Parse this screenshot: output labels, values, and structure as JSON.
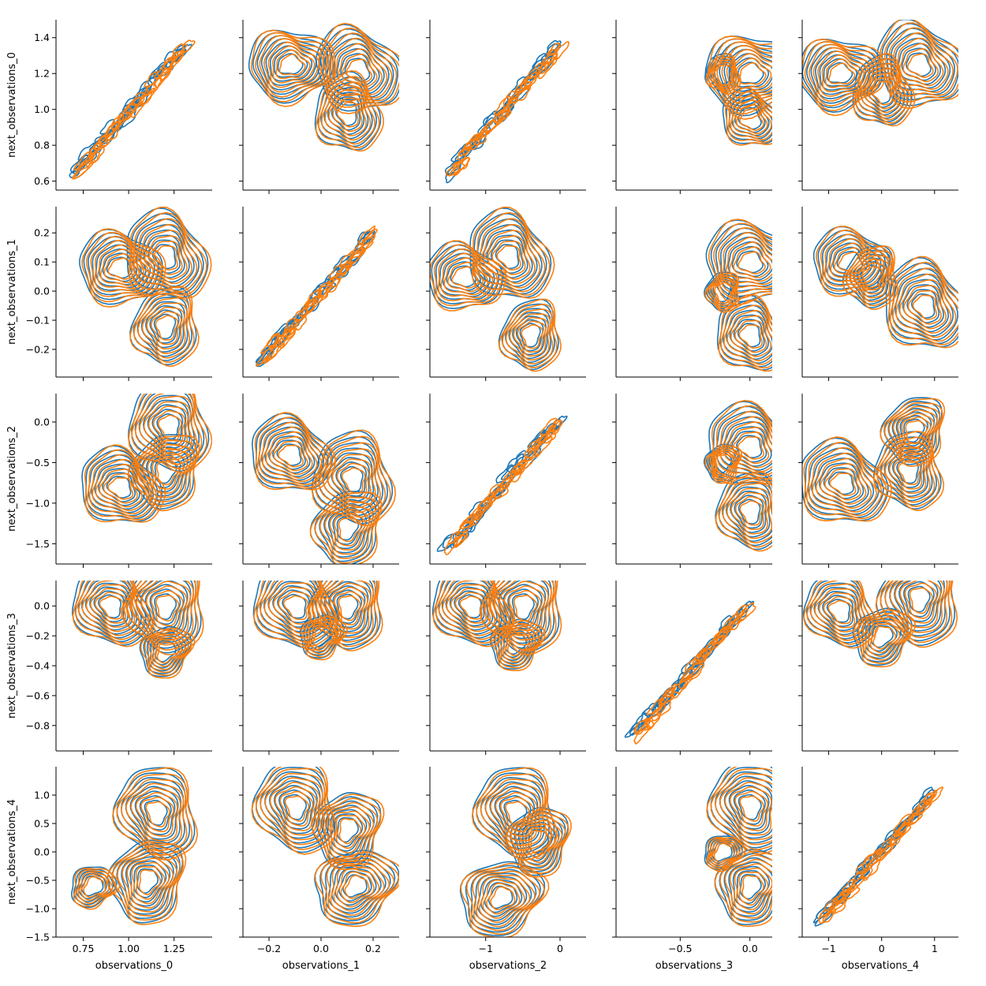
{
  "chart_data": {
    "type": "kde_pairgrid",
    "description_kind": "5x5 pair grid of bivariate KDE contour plots, two overlaid series (blue and orange)",
    "series_colors": [
      "#1f77b4",
      "#ff7f0e"
    ],
    "x_variables": [
      "observations_0",
      "observations_1",
      "observations_2",
      "observations_3",
      "observations_4"
    ],
    "y_variables": [
      "next_observations_0",
      "next_observations_1",
      "next_observations_2",
      "next_observations_3",
      "next_observations_4"
    ],
    "x_axes": [
      {
        "label": "observations_0",
        "range": [
          0.6,
          1.46
        ],
        "ticks": [
          0.75,
          1.0,
          1.25
        ],
        "tick_labels": [
          "0.75",
          "1.00",
          "1.25"
        ]
      },
      {
        "label": "observations_1",
        "range": [
          -0.3,
          0.3
        ],
        "ticks": [
          -0.2,
          0.0,
          0.2
        ],
        "tick_labels": [
          "−0.2",
          "0.0",
          "0.2"
        ]
      },
      {
        "label": "observations_2",
        "range": [
          -1.75,
          0.35
        ],
        "ticks": [
          -1,
          0
        ],
        "tick_labels": [
          "−1",
          "0"
        ]
      },
      {
        "label": "observations_3",
        "range": [
          -0.96,
          0.16
        ],
        "ticks": [
          -0.5,
          0.0
        ],
        "tick_labels": [
          "−0.5",
          "0.0"
        ]
      },
      {
        "label": "observations_4",
        "range": [
          -1.5,
          1.45
        ],
        "ticks": [
          -1,
          0,
          1
        ],
        "tick_labels": [
          "−1",
          "0",
          "1"
        ]
      }
    ],
    "y_axes": [
      {
        "label": "next_observations_0",
        "range": [
          0.55,
          1.5
        ],
        "ticks": [
          0.6,
          0.8,
          1.0,
          1.2,
          1.4
        ],
        "tick_labels": [
          "0.6",
          "0.8",
          "1.0",
          "1.2",
          "1.4"
        ]
      },
      {
        "label": "next_observations_1",
        "range": [
          -0.295,
          0.29
        ],
        "ticks": [
          -0.2,
          -0.1,
          0.0,
          0.1,
          0.2
        ],
        "tick_labels": [
          "−0.2",
          "−0.1",
          "0.0",
          "0.1",
          "0.2"
        ]
      },
      {
        "label": "next_observations_2",
        "range": [
          -1.75,
          0.35
        ],
        "ticks": [
          -1.5,
          -1.0,
          -0.5,
          0.0
        ],
        "tick_labels": [
          "−1.5",
          "−1.0",
          "−0.5",
          "0.0"
        ]
      },
      {
        "label": "next_observations_3",
        "range": [
          -0.97,
          0.17
        ],
        "ticks": [
          -0.8,
          -0.6,
          -0.4,
          -0.2,
          0.0
        ],
        "tick_labels": [
          "−0.8",
          "−0.6",
          "−0.4",
          "−0.2",
          "0.0"
        ]
      },
      {
        "label": "next_observations_4",
        "range": [
          -1.5,
          1.5
        ],
        "ticks": [
          -1.5,
          -1.0,
          -0.5,
          0.0,
          0.5,
          1.0
        ],
        "tick_labels": [
          "−1.5",
          "−1.0",
          "−0.5",
          "0.0",
          "0.5",
          "1.0"
        ]
      }
    ],
    "panels": [
      [
        {
          "kind": "diag",
          "modes": [
            [
              1.05,
              1.05,
              0.3
            ]
          ]
        },
        {
          "kind": "kde",
          "modes": [
            [
              -0.12,
              1.25,
              0.9
            ],
            [
              0.14,
              1.22,
              1.0
            ],
            [
              0.1,
              0.98,
              0.8
            ]
          ]
        },
        {
          "kind": "diag",
          "modes": [
            [
              -0.8,
              1.1,
              0.5
            ]
          ]
        },
        {
          "kind": "kde",
          "modes": [
            [
              0.0,
              1.2,
              1.0
            ],
            [
              0.0,
              0.95,
              0.6
            ],
            [
              -0.2,
              1.2,
              0.3
            ]
          ]
        },
        {
          "kind": "kde",
          "modes": [
            [
              -0.8,
              1.2,
              0.9
            ],
            [
              0.7,
              1.25,
              1.0
            ],
            [
              0.0,
              1.1,
              0.7
            ]
          ]
        }
      ],
      [
        {
          "kind": "kde",
          "modes": [
            [
              0.95,
              0.08,
              0.9
            ],
            [
              1.2,
              0.12,
              1.0
            ],
            [
              1.2,
              -0.12,
              0.8
            ]
          ]
        },
        {
          "kind": "diag",
          "modes": [
            [
              0.0,
              0.0,
              0.3
            ]
          ]
        },
        {
          "kind": "kde",
          "modes": [
            [
              -1.3,
              0.05,
              0.8
            ],
            [
              -0.7,
              0.12,
              1.0
            ],
            [
              -0.4,
              -0.15,
              0.7
            ]
          ]
        },
        {
          "kind": "kde",
          "modes": [
            [
              0.0,
              0.1,
              1.0
            ],
            [
              0.0,
              -0.15,
              0.8
            ],
            [
              -0.2,
              0.0,
              0.3
            ]
          ]
        },
        {
          "kind": "kde",
          "modes": [
            [
              -0.6,
              0.1,
              0.8
            ],
            [
              0.8,
              -0.05,
              1.0
            ],
            [
              -0.2,
              0.05,
              0.6
            ]
          ]
        }
      ],
      [
        {
          "kind": "kde",
          "modes": [
            [
              0.95,
              -0.8,
              0.9
            ],
            [
              1.22,
              -0.05,
              1.0
            ],
            [
              1.2,
              -0.6,
              0.8
            ]
          ]
        },
        {
          "kind": "kde",
          "modes": [
            [
              -0.12,
              -0.4,
              0.9
            ],
            [
              0.12,
              -0.7,
              1.0
            ],
            [
              0.1,
              -1.3,
              0.8
            ]
          ]
        },
        {
          "kind": "diag",
          "modes": [
            [
              -0.7,
              -0.7,
              0.3
            ]
          ]
        },
        {
          "kind": "kde",
          "modes": [
            [
              0.0,
              -0.3,
              1.0
            ],
            [
              0.0,
              -1.1,
              0.8
            ],
            [
              -0.2,
              -0.5,
              0.3
            ]
          ]
        },
        {
          "kind": "kde",
          "modes": [
            [
              -0.75,
              -0.75,
              1.0
            ],
            [
              0.5,
              -0.6,
              0.8
            ],
            [
              0.6,
              -0.1,
              0.7
            ]
          ]
        }
      ],
      [
        {
          "kind": "kde",
          "modes": [
            [
              0.9,
              0.0,
              0.9
            ],
            [
              1.2,
              0.0,
              1.0
            ],
            [
              1.2,
              -0.3,
              0.5
            ]
          ]
        },
        {
          "kind": "kde",
          "modes": [
            [
              -0.1,
              0.0,
              1.0
            ],
            [
              0.1,
              0.0,
              0.9
            ],
            [
              0.0,
              -0.2,
              0.4
            ]
          ]
        },
        {
          "kind": "kde",
          "modes": [
            [
              -1.2,
              0.0,
              0.9
            ],
            [
              -0.5,
              0.0,
              1.0
            ],
            [
              -0.6,
              -0.25,
              0.5
            ]
          ]
        },
        {
          "kind": "diag",
          "modes": [
            [
              -0.2,
              -0.2,
              0.3
            ]
          ]
        },
        {
          "kind": "kde",
          "modes": [
            [
              -0.8,
              -0.03,
              0.8
            ],
            [
              0.7,
              0.05,
              1.0
            ],
            [
              0.0,
              -0.2,
              0.6
            ]
          ]
        }
      ],
      [
        {
          "kind": "kde",
          "modes": [
            [
              1.15,
              0.7,
              1.0
            ],
            [
              1.1,
              -0.5,
              0.9
            ],
            [
              0.8,
              -0.6,
              0.4
            ]
          ]
        },
        {
          "kind": "kde",
          "modes": [
            [
              -0.1,
              0.8,
              1.0
            ],
            [
              0.1,
              0.4,
              0.8
            ],
            [
              0.13,
              -0.6,
              0.9
            ]
          ]
        },
        {
          "kind": "kde",
          "modes": [
            [
              -0.6,
              0.7,
              1.0
            ],
            [
              -0.3,
              0.2,
              0.7
            ],
            [
              -0.8,
              -0.8,
              0.9
            ]
          ]
        },
        {
          "kind": "kde",
          "modes": [
            [
              0.0,
              0.8,
              1.0
            ],
            [
              0.0,
              -0.6,
              0.8
            ],
            [
              -0.2,
              0.0,
              0.3
            ]
          ]
        },
        {
          "kind": "diag",
          "modes": [
            [
              0.0,
              0.0,
              0.3
            ]
          ]
        }
      ]
    ]
  }
}
